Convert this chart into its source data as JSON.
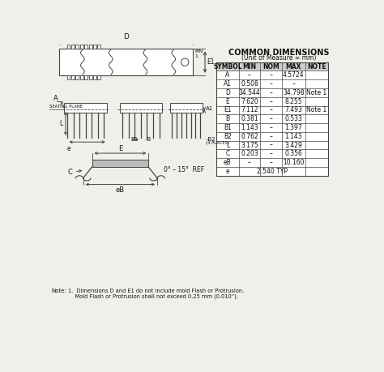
{
  "title": "COMMON DIMENSIONS",
  "subtitle": "(Unit of Measure = mm)",
  "table_headers": [
    "SYMBOL",
    "MIN",
    "NOM",
    "MAX",
    "NOTE"
  ],
  "table_rows": [
    [
      "A",
      "–",
      "–",
      "4.5724",
      ""
    ],
    [
      "A1",
      "0.508",
      "–",
      "–",
      ""
    ],
    [
      "D",
      "34.544",
      "–",
      "34.798",
      "Note 1"
    ],
    [
      "E",
      "7.620",
      "–",
      "8.255",
      ""
    ],
    [
      "E1",
      "7.112",
      "–",
      "7.493",
      "Note 1"
    ],
    [
      "B",
      "0.381",
      "–",
      "0.533",
      ""
    ],
    [
      "B1",
      "1.143",
      "–",
      "1.397",
      ""
    ],
    [
      "B2",
      "0.762",
      "–",
      "1.143",
      ""
    ],
    [
      "L",
      "3.175",
      "–",
      "3.429",
      ""
    ],
    [
      "C",
      "0.203",
      "–",
      "0.356",
      ""
    ],
    [
      "eB",
      "–",
      "–",
      "10.160",
      ""
    ],
    [
      "e",
      "",
      "2.540 TYP",
      "",
      ""
    ]
  ],
  "note_label": "Note:",
  "note_text_1": "1.  Dimensions D and E1 do not include mold Flash or Protrusion.",
  "note_text_2": "    Mold Flash or Protrusion shall not exceed 0.25 mm (0.010”).",
  "bg_color": "#f0f0eb",
  "line_color": "#444444",
  "text_color": "#111111"
}
